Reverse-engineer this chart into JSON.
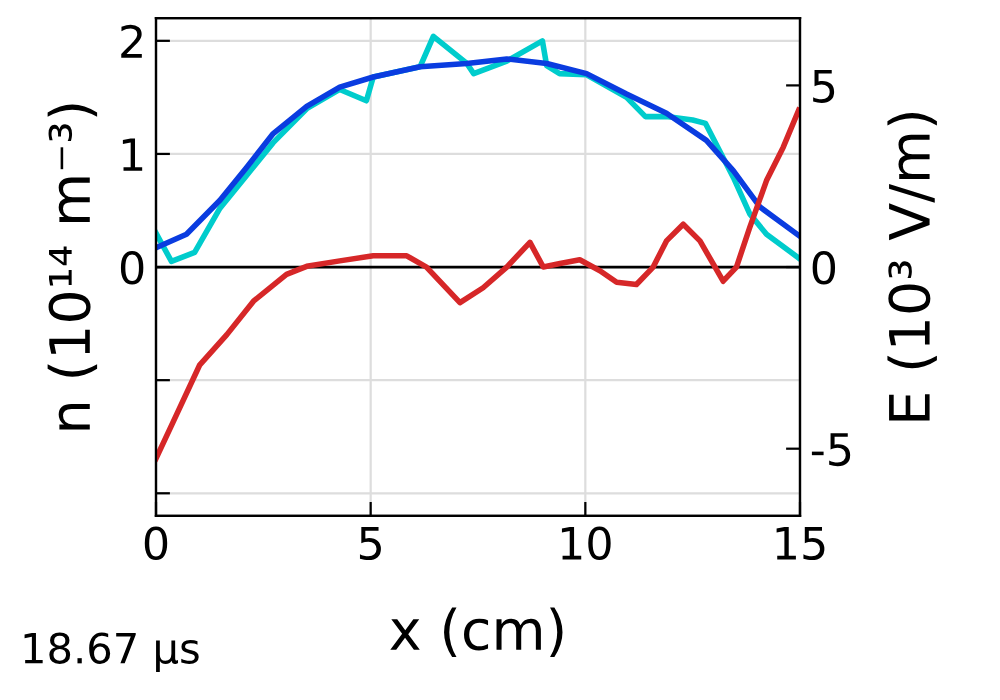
{
  "chart_data": {
    "type": "line",
    "xlabel": "x (cm)",
    "ylabel": "n (10¹⁴ m⁻³)",
    "y2label": "E (10³ V/m)",
    "annotations": [
      "18.67 μs"
    ],
    "xlim": [
      0,
      15
    ],
    "xticks": [
      0,
      5,
      10,
      15
    ],
    "ylim": [
      -2.2,
      2.2
    ],
    "yticks": [
      {
        "value": -2,
        "label": null
      },
      {
        "value": -1,
        "label": null
      },
      0,
      1,
      2
    ],
    "y2lim": [
      -6.85,
      6.85
    ],
    "y2ticks": [
      -5,
      0,
      5
    ],
    "grid": true,
    "line_style": "solid",
    "ref_lines": [
      {
        "axis": "y",
        "value": 0,
        "color": "#000000"
      }
    ],
    "series": [
      {
        "color": "#00cccc",
        "x": [
          0,
          0.36,
          0.9,
          1.49,
          2.11,
          2.73,
          3.51,
          4.28,
          4.9,
          5.06,
          6.15,
          6.46,
          7.24,
          7.4,
          8.17,
          9.0,
          9.1,
          9.4,
          10.03,
          10.96,
          11.4,
          11.89,
          12.5,
          12.8,
          13.45,
          13.83,
          14.22,
          14.97
        ],
        "values": [
          0.3,
          0.05,
          0.13,
          0.52,
          0.81,
          1.1,
          1.4,
          1.57,
          1.47,
          1.68,
          1.77,
          2.04,
          1.8,
          1.71,
          1.82,
          2.0,
          1.78,
          1.71,
          1.7,
          1.5,
          1.33,
          1.33,
          1.3,
          1.27,
          0.79,
          0.47,
          0.29,
          0.08
        ]
      },
      {
        "color": "#0a3ce0",
        "x": [
          0,
          0.71,
          1.49,
          2.11,
          2.73,
          3.51,
          4.28,
          5.06,
          6.15,
          7.24,
          8.17,
          9.1,
          10.03,
          10.96,
          11.89,
          12.82,
          13.45,
          14.07,
          14.97
        ],
        "values": [
          0.17,
          0.29,
          0.59,
          0.88,
          1.18,
          1.42,
          1.59,
          1.68,
          1.77,
          1.8,
          1.84,
          1.8,
          1.71,
          1.53,
          1.36,
          1.12,
          0.85,
          0.53,
          0.28
        ]
      },
      {
        "color": "#d62728",
        "axis": "y2",
        "x": [
          0,
          0.4,
          1.02,
          1.65,
          2.27,
          3.04,
          3.51,
          4.28,
          5.06,
          5.84,
          6.3,
          7.08,
          7.62,
          8.17,
          8.71,
          9.02,
          9.41,
          9.87,
          10.34,
          10.73,
          11.19,
          11.58,
          11.89,
          12.28,
          12.67,
          13.21,
          13.52,
          13.83,
          14.22,
          14.61,
          14.97
        ],
        "values": [
          -5.27,
          -4.26,
          -2.69,
          -1.86,
          -0.94,
          -0.2,
          0.02,
          0.17,
          0.31,
          0.31,
          0,
          -0.98,
          -0.57,
          0,
          0.68,
          0,
          0.1,
          0.2,
          -0.1,
          -0.42,
          -0.48,
          0,
          0.72,
          1.18,
          0.72,
          -0.39,
          0,
          1.09,
          2.38,
          3.3,
          4.32
        ]
      }
    ]
  }
}
